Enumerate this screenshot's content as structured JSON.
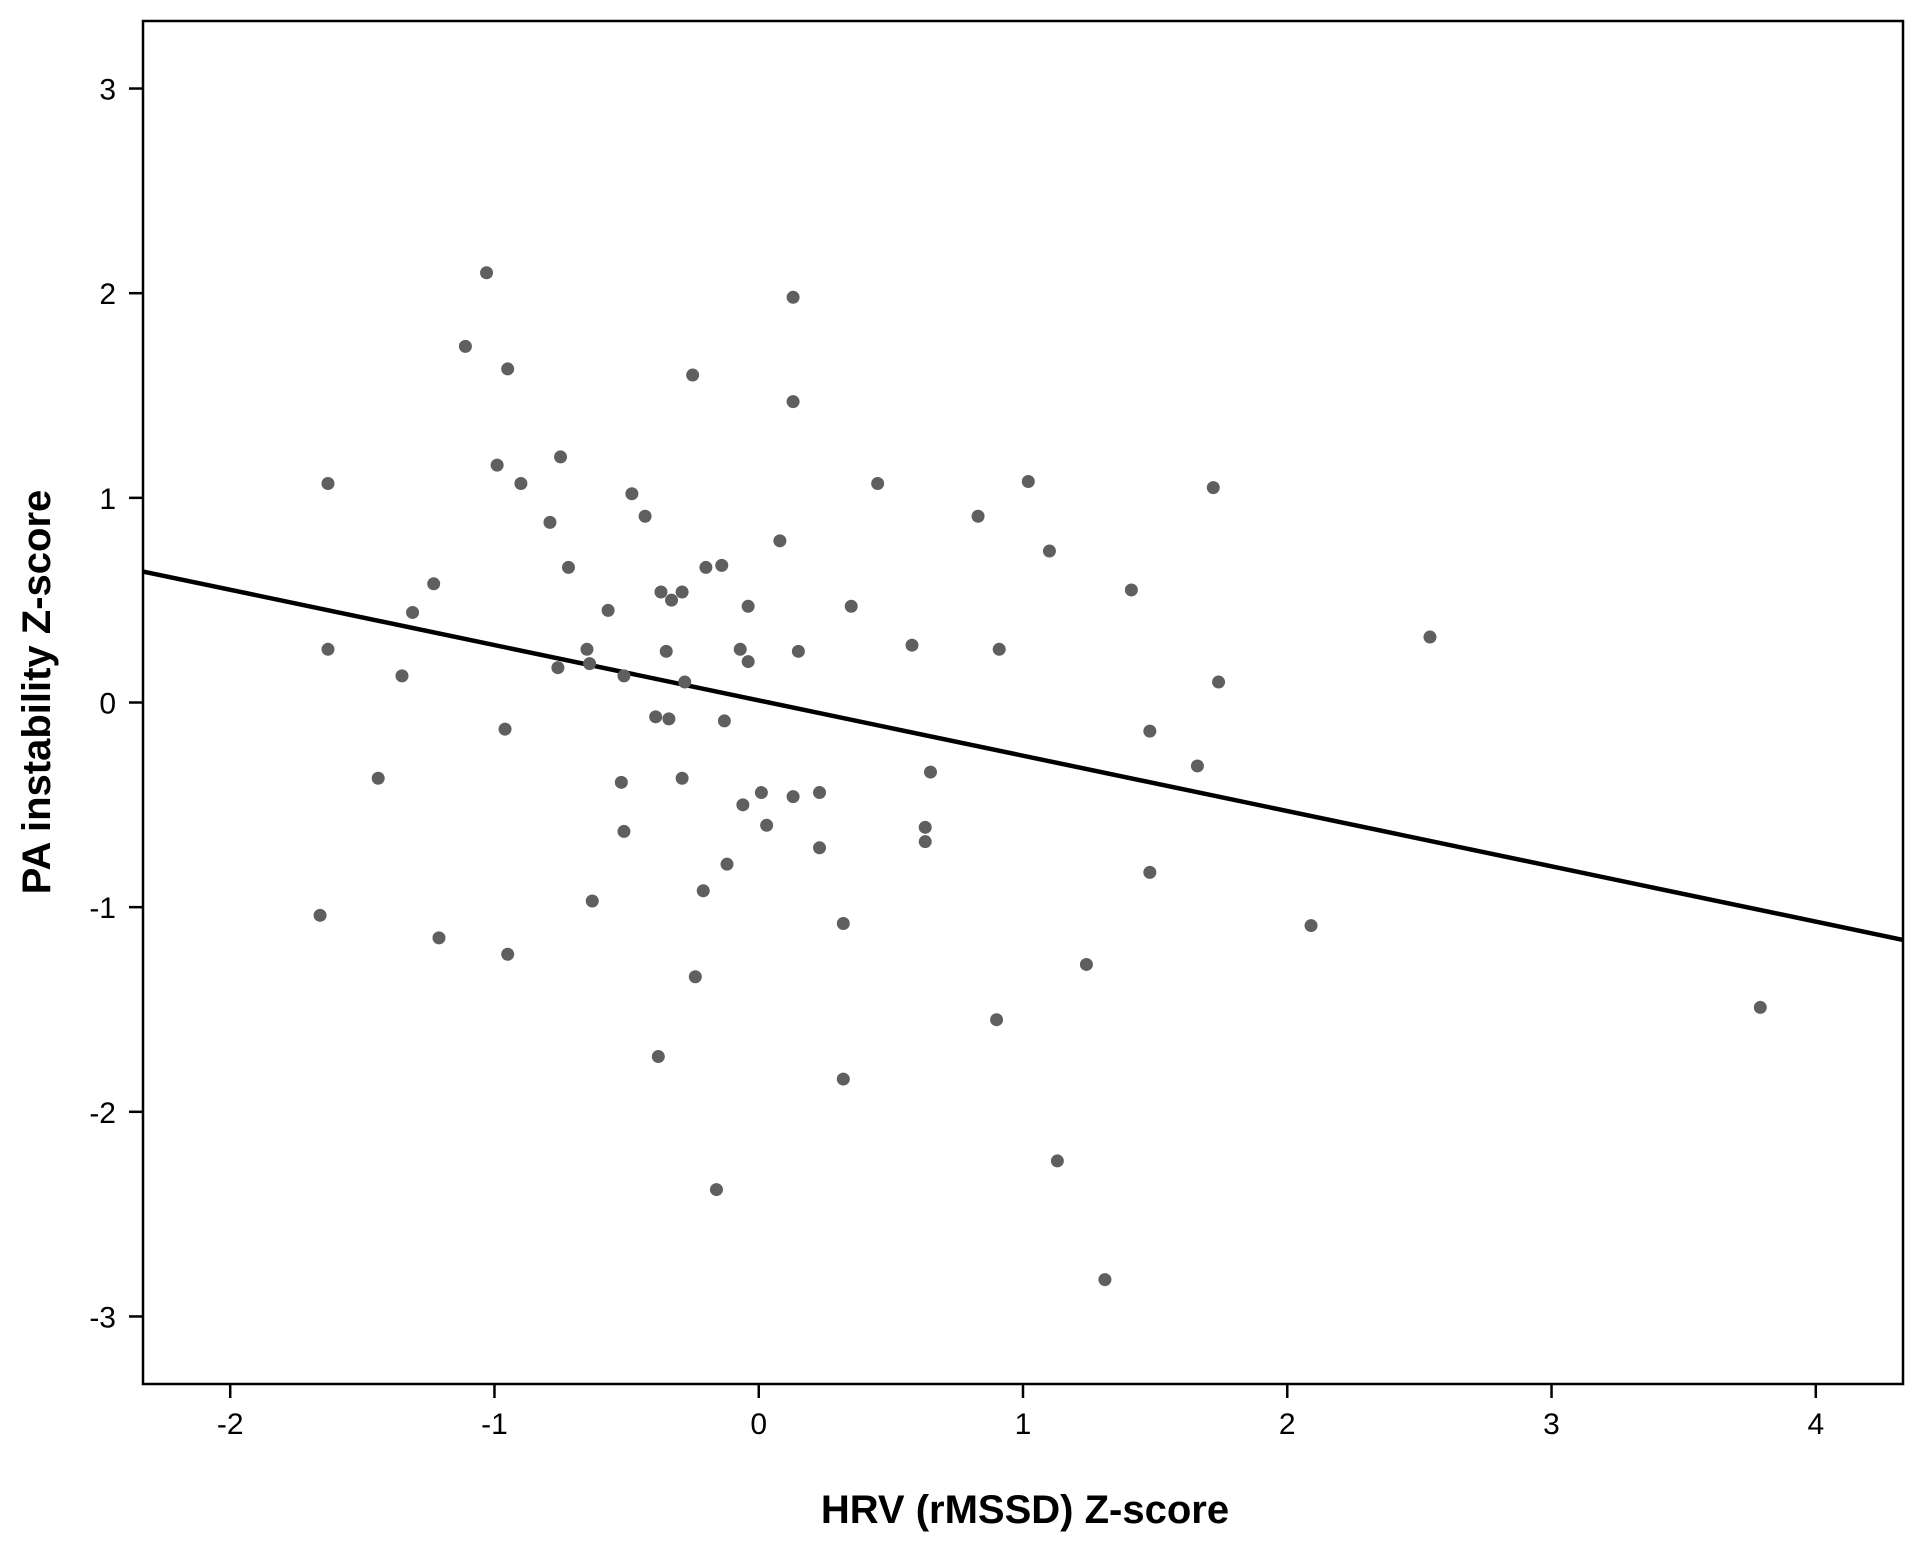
{
  "chart_data": {
    "type": "scatter",
    "title": "",
    "xlabel": "HRV (rMSSD) Z-score",
    "ylabel": "PA instability Z-score",
    "xlim": [
      -2.33,
      4.33
    ],
    "ylim": [
      -3.33,
      3.33
    ],
    "xticks": [
      -2,
      -1,
      0,
      1,
      2,
      3,
      4
    ],
    "yticks": [
      -3,
      -2,
      -1,
      0,
      1,
      2,
      3
    ],
    "grid": false,
    "legend": "none",
    "colors": {
      "points": "#5f5f5f",
      "line": "#000000",
      "axes": "#000000"
    },
    "fit_line": {
      "x": [
        -2.33,
        4.33
      ],
      "y": [
        0.64,
        -1.16
      ]
    },
    "points": [
      {
        "x": -1.03,
        "y": 2.1
      },
      {
        "x": 0.13,
        "y": 1.98
      },
      {
        "x": -1.11,
        "y": 1.74
      },
      {
        "x": -0.95,
        "y": 1.63
      },
      {
        "x": -0.25,
        "y": 1.6
      },
      {
        "x": 0.13,
        "y": 1.47
      },
      {
        "x": -0.75,
        "y": 1.2
      },
      {
        "x": -0.99,
        "y": 1.16
      },
      {
        "x": -1.63,
        "y": 1.07
      },
      {
        "x": -0.9,
        "y": 1.07
      },
      {
        "x": 0.45,
        "y": 1.07
      },
      {
        "x": 1.02,
        "y": 1.08
      },
      {
        "x": 1.72,
        "y": 1.05
      },
      {
        "x": -0.48,
        "y": 1.02
      },
      {
        "x": -0.43,
        "y": 0.91
      },
      {
        "x": 0.83,
        "y": 0.91
      },
      {
        "x": -0.79,
        "y": 0.88
      },
      {
        "x": 0.08,
        "y": 0.79
      },
      {
        "x": 1.1,
        "y": 0.74
      },
      {
        "x": -0.72,
        "y": 0.66
      },
      {
        "x": -0.2,
        "y": 0.66
      },
      {
        "x": -0.14,
        "y": 0.67
      },
      {
        "x": -1.23,
        "y": 0.58
      },
      {
        "x": 1.41,
        "y": 0.55
      },
      {
        "x": -0.37,
        "y": 0.54
      },
      {
        "x": -0.29,
        "y": 0.54
      },
      {
        "x": -0.33,
        "y": 0.5
      },
      {
        "x": 0.35,
        "y": 0.47
      },
      {
        "x": -0.04,
        "y": 0.47
      },
      {
        "x": -0.57,
        "y": 0.45
      },
      {
        "x": -1.31,
        "y": 0.44
      },
      {
        "x": 2.54,
        "y": 0.32
      },
      {
        "x": 0.58,
        "y": 0.28
      },
      {
        "x": -1.63,
        "y": 0.26
      },
      {
        "x": -0.65,
        "y": 0.26
      },
      {
        "x": -0.07,
        "y": 0.26
      },
      {
        "x": 0.91,
        "y": 0.26
      },
      {
        "x": -0.35,
        "y": 0.25
      },
      {
        "x": 0.15,
        "y": 0.25
      },
      {
        "x": -0.64,
        "y": 0.19
      },
      {
        "x": -0.04,
        "y": 0.2
      },
      {
        "x": -0.76,
        "y": 0.17
      },
      {
        "x": -1.35,
        "y": 0.13
      },
      {
        "x": -0.51,
        "y": 0.13
      },
      {
        "x": -0.28,
        "y": 0.1
      },
      {
        "x": 1.74,
        "y": 0.1
      },
      {
        "x": -0.39,
        "y": -0.07
      },
      {
        "x": -0.34,
        "y": -0.08
      },
      {
        "x": -0.13,
        "y": -0.09
      },
      {
        "x": -0.96,
        "y": -0.13
      },
      {
        "x": 1.48,
        "y": -0.14
      },
      {
        "x": 1.66,
        "y": -0.31
      },
      {
        "x": 0.65,
        "y": -0.34
      },
      {
        "x": -1.44,
        "y": -0.37
      },
      {
        "x": -0.29,
        "y": -0.37
      },
      {
        "x": -0.52,
        "y": -0.39
      },
      {
        "x": 0.01,
        "y": -0.44
      },
      {
        "x": 0.23,
        "y": -0.44
      },
      {
        "x": 0.13,
        "y": -0.46
      },
      {
        "x": -0.06,
        "y": -0.5
      },
      {
        "x": 0.03,
        "y": -0.6
      },
      {
        "x": 0.63,
        "y": -0.61
      },
      {
        "x": -0.51,
        "y": -0.63
      },
      {
        "x": 0.63,
        "y": -0.68
      },
      {
        "x": 0.23,
        "y": -0.71
      },
      {
        "x": -0.12,
        "y": -0.79
      },
      {
        "x": 1.48,
        "y": -0.83
      },
      {
        "x": -0.21,
        "y": -0.92
      },
      {
        "x": -0.63,
        "y": -0.97
      },
      {
        "x": -1.66,
        "y": -1.04
      },
      {
        "x": 0.32,
        "y": -1.08
      },
      {
        "x": 2.09,
        "y": -1.09
      },
      {
        "x": -1.21,
        "y": -1.15
      },
      {
        "x": -0.95,
        "y": -1.23
      },
      {
        "x": 1.24,
        "y": -1.28
      },
      {
        "x": -0.24,
        "y": -1.34
      },
      {
        "x": 3.79,
        "y": -1.49
      },
      {
        "x": 0.9,
        "y": -1.55
      },
      {
        "x": -0.38,
        "y": -1.73
      },
      {
        "x": 0.32,
        "y": -1.84
      },
      {
        "x": 1.13,
        "y": -2.24
      },
      {
        "x": -0.16,
        "y": -2.38
      },
      {
        "x": 1.31,
        "y": -2.82
      }
    ]
  }
}
